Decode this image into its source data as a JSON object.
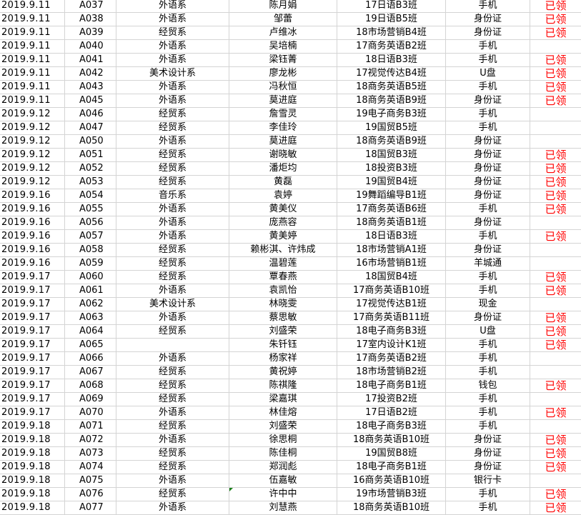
{
  "status_color": "#ff0000",
  "rows": [
    [
      "2019.9.11",
      "A037",
      "外语系",
      "陈月娟",
      "17日语B3班",
      "手机",
      "已领"
    ],
    [
      "2019.9.11",
      "A038",
      "外语系",
      "邹蕾",
      "19日语B5班",
      "身份证",
      "已领"
    ],
    [
      "2019.9.11",
      "A039",
      "经贸系",
      "卢维冰",
      "18市场营销B4班",
      "身份证",
      "已领"
    ],
    [
      "2019.9.11",
      "A040",
      "外语系",
      "吴培楠",
      "17商务英语B2班",
      "手机",
      ""
    ],
    [
      "2019.9.11",
      "A041",
      "外语系",
      "梁钰菁",
      "18日语B3班",
      "手机",
      "已领"
    ],
    [
      "2019.9.11",
      "A042",
      "美术设计系",
      "廖龙彬",
      "17视觉传达B4班",
      "U盘",
      "已领"
    ],
    [
      "2019.9.11",
      "A043",
      "外语系",
      "冯秋恒",
      "18商务英语B5班",
      "手机",
      "已领"
    ],
    [
      "2019.9.11",
      "A045",
      "外语系",
      "莫进庭",
      "18商务英语B9班",
      "身份证",
      "已领"
    ],
    [
      "2019.9.12",
      "A046",
      "经贸系",
      "詹雪灵",
      "19电子商务B3班",
      "手机",
      ""
    ],
    [
      "2019.9.12",
      "A047",
      "经贸系",
      "李佳玲",
      "19国贸B5班",
      "手机",
      ""
    ],
    [
      "2019.9.12",
      "A050",
      "外语系",
      "莫进庭",
      "18商务英语B9班",
      "身份证",
      ""
    ],
    [
      "2019.9.12",
      "A051",
      "经贸系",
      "谢晓敏",
      "18国贸B3班",
      "身份证",
      "已领"
    ],
    [
      "2019.9.12",
      "A052",
      "经贸系",
      "潘炬均",
      "18投资B3班",
      "身份证",
      "已领"
    ],
    [
      "2019.9.12",
      "A053",
      "经贸系",
      "黄磊",
      "19国贸B4班",
      "身份证",
      "已领"
    ],
    [
      "2019.9.16",
      "A054",
      "音乐系",
      "袁婷",
      "19舞蹈编导B1班",
      "身份证",
      "已领"
    ],
    [
      "2019.9.16",
      "A055",
      "外语系",
      "黄美仪",
      "17商务英语B6班",
      "手机",
      "已领"
    ],
    [
      "2019.9.16",
      "A056",
      "外语系",
      "庞燕容",
      "18商务英语B1班",
      "身份证",
      ""
    ],
    [
      "2019.9.16",
      "A057",
      "外语系",
      "黄美婷",
      "18日语B3班",
      "手机",
      "已领"
    ],
    [
      "2019.9.16",
      "A058",
      "经贸系",
      "赖彬淇、许炜成",
      "18市场营销A1班",
      "身份证",
      ""
    ],
    [
      "2019.9.16",
      "A059",
      "经贸系",
      "温碧莲",
      "16市场营销B1班",
      "羊城通",
      ""
    ],
    [
      "2019.9.17",
      "A060",
      "经贸系",
      "覃春燕",
      "18国贸B4班",
      "手机",
      "已领"
    ],
    [
      "2019.9.17",
      "A061",
      "外语系",
      "袁凯怡",
      "17商务英语B10班",
      "手机",
      "已领"
    ],
    [
      "2019.9.17",
      "A062",
      "美术设计系",
      "林晓雯",
      "17视觉传达B1班",
      "现金",
      ""
    ],
    [
      "2019.9.17",
      "A063",
      "外语系",
      "蔡思敏",
      "17商务英语B11班",
      "身份证",
      "已领"
    ],
    [
      "2019.9.17",
      "A064",
      "经贸系",
      "刘盛荣",
      "18电子商务B3班",
      "U盘",
      "已领"
    ],
    [
      "2019.9.17",
      "A065",
      "",
      "朱钎钰",
      "17室内设计K1班",
      "手机",
      "已领"
    ],
    [
      "2019.9.17",
      "A066",
      "外语系",
      "杨家祥",
      "17商务英语B2班",
      "手机",
      ""
    ],
    [
      "2019.9.17",
      "A067",
      "经贸系",
      "黄祝婷",
      "18市场营销B2班",
      "手机",
      ""
    ],
    [
      "2019.9.17",
      "A068",
      "经贸系",
      "陈祺隆",
      "18电子商务B1班",
      "钱包",
      "已领"
    ],
    [
      "2019.9.17",
      "A069",
      "经贸系",
      "梁嘉琪",
      "17投资B2班",
      "手机",
      ""
    ],
    [
      "2019.9.17",
      "A070",
      "外语系",
      "林佳熔",
      "17日语B2班",
      "手机",
      "已领"
    ],
    [
      "2019.9.18",
      "A071",
      "经贸系",
      "刘盛荣",
      "18电子商务B3班",
      "手机",
      ""
    ],
    [
      "2019.9.18",
      "A072",
      "外语系",
      "徐思桐",
      "18商务英语B10班",
      "身份证",
      "已领"
    ],
    [
      "2019.9.18",
      "A073",
      "经贸系",
      "陈佳桐",
      "19国贸B8班",
      "身份证",
      "已领"
    ],
    [
      "2019.9.18",
      "A074",
      "经贸系",
      "郑润彪",
      "18电子商务B1班",
      "身份证",
      "已领"
    ],
    [
      "2019.9.18",
      "A075",
      "外语系",
      "伍嘉敏",
      "16商务英语B10班",
      "银行卡",
      ""
    ],
    [
      "2019.9.18",
      "A076",
      "经贸系",
      "许中中",
      "19市场营销B3班",
      "手机",
      "已领"
    ],
    [
      "2019.9.18",
      "A077",
      "外语系",
      "刘慧燕",
      "18商务英语B10班",
      "手机",
      "已领"
    ]
  ]
}
